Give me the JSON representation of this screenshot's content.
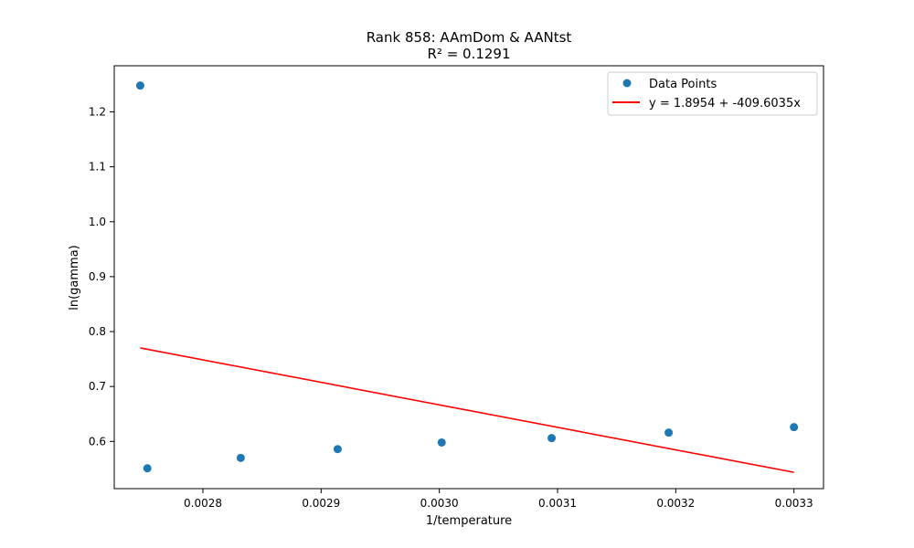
{
  "chart_data": {
    "type": "scatter",
    "title": "Rank 858: AAmDom & AANtst",
    "subtitle": "R² = 0.1291",
    "xlabel": "1/temperature",
    "ylabel": "ln(gamma)",
    "xlim": [
      0.002725,
      0.003325
    ],
    "ylim": [
      0.514,
      1.284
    ],
    "x_ticks": [
      0.0028,
      0.0029,
      0.003,
      0.0031,
      0.0032,
      0.0033
    ],
    "x_tick_labels": [
      "0.0028",
      "0.0029",
      "0.0030",
      "0.0031",
      "0.0032",
      "0.0033"
    ],
    "y_ticks": [
      0.6,
      0.7,
      0.8,
      0.9,
      1.0,
      1.1,
      1.2
    ],
    "y_tick_labels": [
      "0.6",
      "0.7",
      "0.8",
      "0.9",
      "1.0",
      "1.1",
      "1.2"
    ],
    "grid": false,
    "legend_position": "top-right",
    "series": [
      {
        "name": "Data Points",
        "kind": "scatter",
        "color": "#1f77b4",
        "points": [
          {
            "x": 0.002747,
            "y": 1.248
          },
          {
            "x": 0.002753,
            "y": 0.551
          },
          {
            "x": 0.002832,
            "y": 0.57
          },
          {
            "x": 0.002914,
            "y": 0.586
          },
          {
            "x": 0.003002,
            "y": 0.598
          },
          {
            "x": 0.003095,
            "y": 0.606
          },
          {
            "x": 0.003194,
            "y": 0.616
          },
          {
            "x": 0.0033,
            "y": 0.626
          }
        ]
      },
      {
        "name": "y = 1.8954 + -409.6035x",
        "kind": "line",
        "color": "#ff0000",
        "intercept": 1.8954,
        "slope": -409.6035,
        "x_range": [
          0.002747,
          0.0033
        ]
      }
    ]
  }
}
